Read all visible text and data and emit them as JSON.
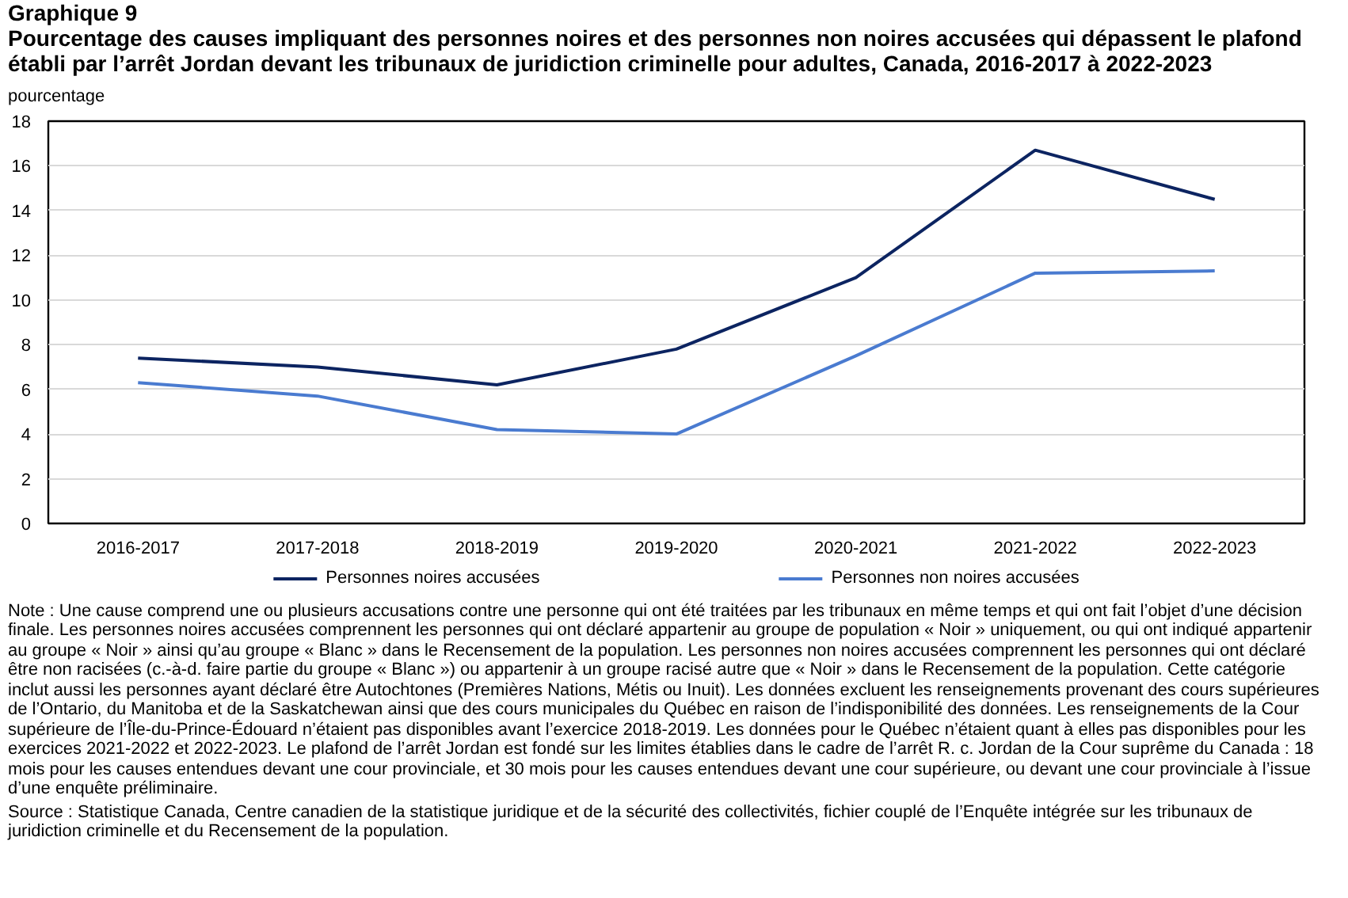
{
  "chart_data": {
    "type": "line",
    "title": "Graphique 9",
    "subtitle": "Pourcentage des causes impliquant des personnes noires et des personnes non noires accusées qui dépassent le plafond établi par l’arrêt Jordan devant les tribunaux de juridiction criminelle pour adultes, Canada, 2016-2017 à 2022-2023",
    "ylabel": "pourcentage",
    "categories": [
      "2016-2017",
      "2017-2018",
      "2018-2019",
      "2019-2020",
      "2020-2021",
      "2021-2022",
      "2022-2023"
    ],
    "series": [
      {
        "name": "Personnes noires accusées",
        "color": "#0c2461",
        "values": [
          7.4,
          7.0,
          6.2,
          7.8,
          11.0,
          16.7,
          14.5
        ]
      },
      {
        "name": "Personnes non noires accusées",
        "color": "#4a7bd0",
        "values": [
          6.3,
          5.7,
          4.2,
          4.0,
          7.5,
          11.2,
          11.3
        ]
      }
    ],
    "ylim": [
      0,
      18
    ],
    "yticks": [
      0,
      2,
      4,
      6,
      8,
      10,
      12,
      14,
      16,
      18
    ],
    "grid": "y",
    "legend": "bottom",
    "marker": "none",
    "line_style": "solid",
    "annotations": [
      "Note : Une cause comprend une ou plusieurs accusations contre une personne qui ont été traitées par les tribunaux en même temps et qui ont fait l’objet d’une décision finale. Les personnes noires accusées comprennent les personnes qui ont déclaré appartenir au groupe de population « Noir » uniquement, ou qui ont indiqué appartenir au groupe « Noir » ainsi qu’au groupe « Blanc » dans le Recensement de la population. Les personnes non noires accusées comprennent les personnes qui ont déclaré être non racisées (c.-à-d. faire partie du groupe « Blanc ») ou appartenir à un groupe racisé autre que « Noir » dans le Recensement de la population. Cette catégorie inclut aussi les personnes ayant déclaré être Autochtones (Premières Nations, Métis ou Inuit). Les données excluent les renseignements provenant des cours supérieures de l’Ontario, du Manitoba et de la Saskatchewan ainsi que des cours municipales du Québec en raison de l’indisponibilité des données. Les renseignements de la Cour supérieure de l’Île-du-Prince-Édouard n’étaient pas disponibles avant l’exercice 2018-2019. Les données pour le Québec n’étaient quant à elles pas disponibles pour les exercices 2021-2022 et 2022-2023. Le plafond de l’arrêt Jordan est fondé sur les limites établies dans le cadre de l’arrêt R. c. Jordan de la Cour suprême du Canada : 18 mois pour les causes entendues devant une cour provinciale, et 30 mois pour les causes entendues devant une cour supérieure, ou devant une cour provinciale à l’issue d’une enquête préliminaire.",
      "Source : Statistique Canada, Centre canadien de la statistique juridique et de la sécurité des collectivités, fichier couplé de l’Enquête intégrée sur les tribunaux de juridiction criminelle et du Recensement de la population."
    ]
  }
}
